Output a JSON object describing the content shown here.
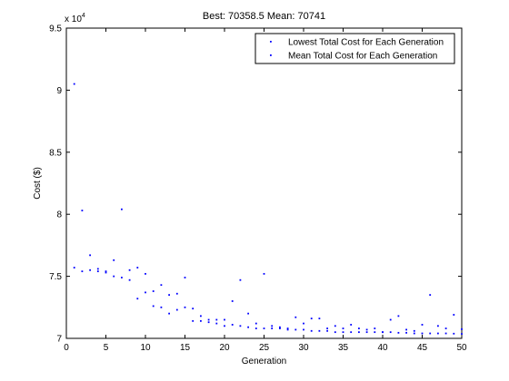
{
  "chart_data": {
    "type": "scatter",
    "title": "Best: 70358.5 Mean: 70741",
    "xlabel": "Generation",
    "ylabel": "Cost ($)",
    "y_multiplier_label": "x 10",
    "y_multiplier_exponent": "4",
    "xlim": [
      0,
      50
    ],
    "ylim": [
      70000,
      95000
    ],
    "x_ticks": [
      0,
      5,
      10,
      15,
      20,
      25,
      30,
      35,
      40,
      45,
      50
    ],
    "x_tick_labels": [
      "0",
      "5",
      "10",
      "15",
      "20",
      "25",
      "30",
      "35",
      "40",
      "45",
      "50"
    ],
    "y_ticks": [
      70000,
      75000,
      80000,
      85000,
      90000,
      95000
    ],
    "y_tick_labels": [
      "7",
      "7.5",
      "8",
      "8.5",
      "9",
      "9.5"
    ],
    "grid": false,
    "legend_position": "top-right",
    "series": [
      {
        "name": "Lowest Total Cost for Each Generation",
        "color": "#0000ff",
        "x": [
          1,
          2,
          3,
          4,
          5,
          6,
          7,
          8,
          9,
          10,
          11,
          12,
          13,
          14,
          15,
          16,
          17,
          18,
          19,
          20,
          21,
          22,
          23,
          24,
          25,
          26,
          27,
          28,
          29,
          30,
          31,
          32,
          33,
          34,
          35,
          36,
          37,
          38,
          39,
          40,
          41,
          42,
          43,
          44,
          45,
          46,
          47,
          48,
          49,
          50
        ],
        "y": [
          75700,
          75400,
          75500,
          75400,
          75300,
          75000,
          74900,
          74700,
          73200,
          73700,
          72600,
          72500,
          72000,
          72300,
          72500,
          71400,
          71400,
          71300,
          71200,
          71000,
          71100,
          71000,
          70900,
          70800,
          70800,
          70800,
          70800,
          70700,
          70700,
          70700,
          70600,
          70600,
          70600,
          70500,
          70500,
          70500,
          70500,
          70500,
          70500,
          70500,
          70500,
          70450,
          70450,
          70400,
          70400,
          70400,
          70400,
          70400,
          70380,
          70358.5
        ]
      },
      {
        "name": "Mean Total Cost for Each Generation",
        "color": "#0000ff",
        "x": [
          1,
          2,
          3,
          4,
          5,
          6,
          7,
          8,
          9,
          10,
          11,
          12,
          13,
          14,
          15,
          16,
          17,
          18,
          19,
          20,
          21,
          22,
          23,
          24,
          25,
          26,
          27,
          28,
          29,
          30,
          31,
          32,
          33,
          34,
          35,
          36,
          37,
          38,
          39,
          40,
          41,
          42,
          43,
          44,
          45,
          46,
          47,
          48,
          49,
          50
        ],
        "y": [
          90500,
          80300,
          76700,
          75600,
          75400,
          76300,
          80400,
          75500,
          75700,
          75200,
          73800,
          74300,
          73500,
          73600,
          74900,
          72400,
          71800,
          71500,
          71500,
          71500,
          73000,
          74700,
          72000,
          71200,
          75200,
          71000,
          70900,
          70800,
          71700,
          71200,
          71600,
          71600,
          70800,
          71000,
          70800,
          71100,
          70800,
          70700,
          70800,
          70500,
          71500,
          71800,
          70700,
          70600,
          71100,
          73500,
          71000,
          70800,
          71900,
          70741
        ]
      }
    ]
  }
}
